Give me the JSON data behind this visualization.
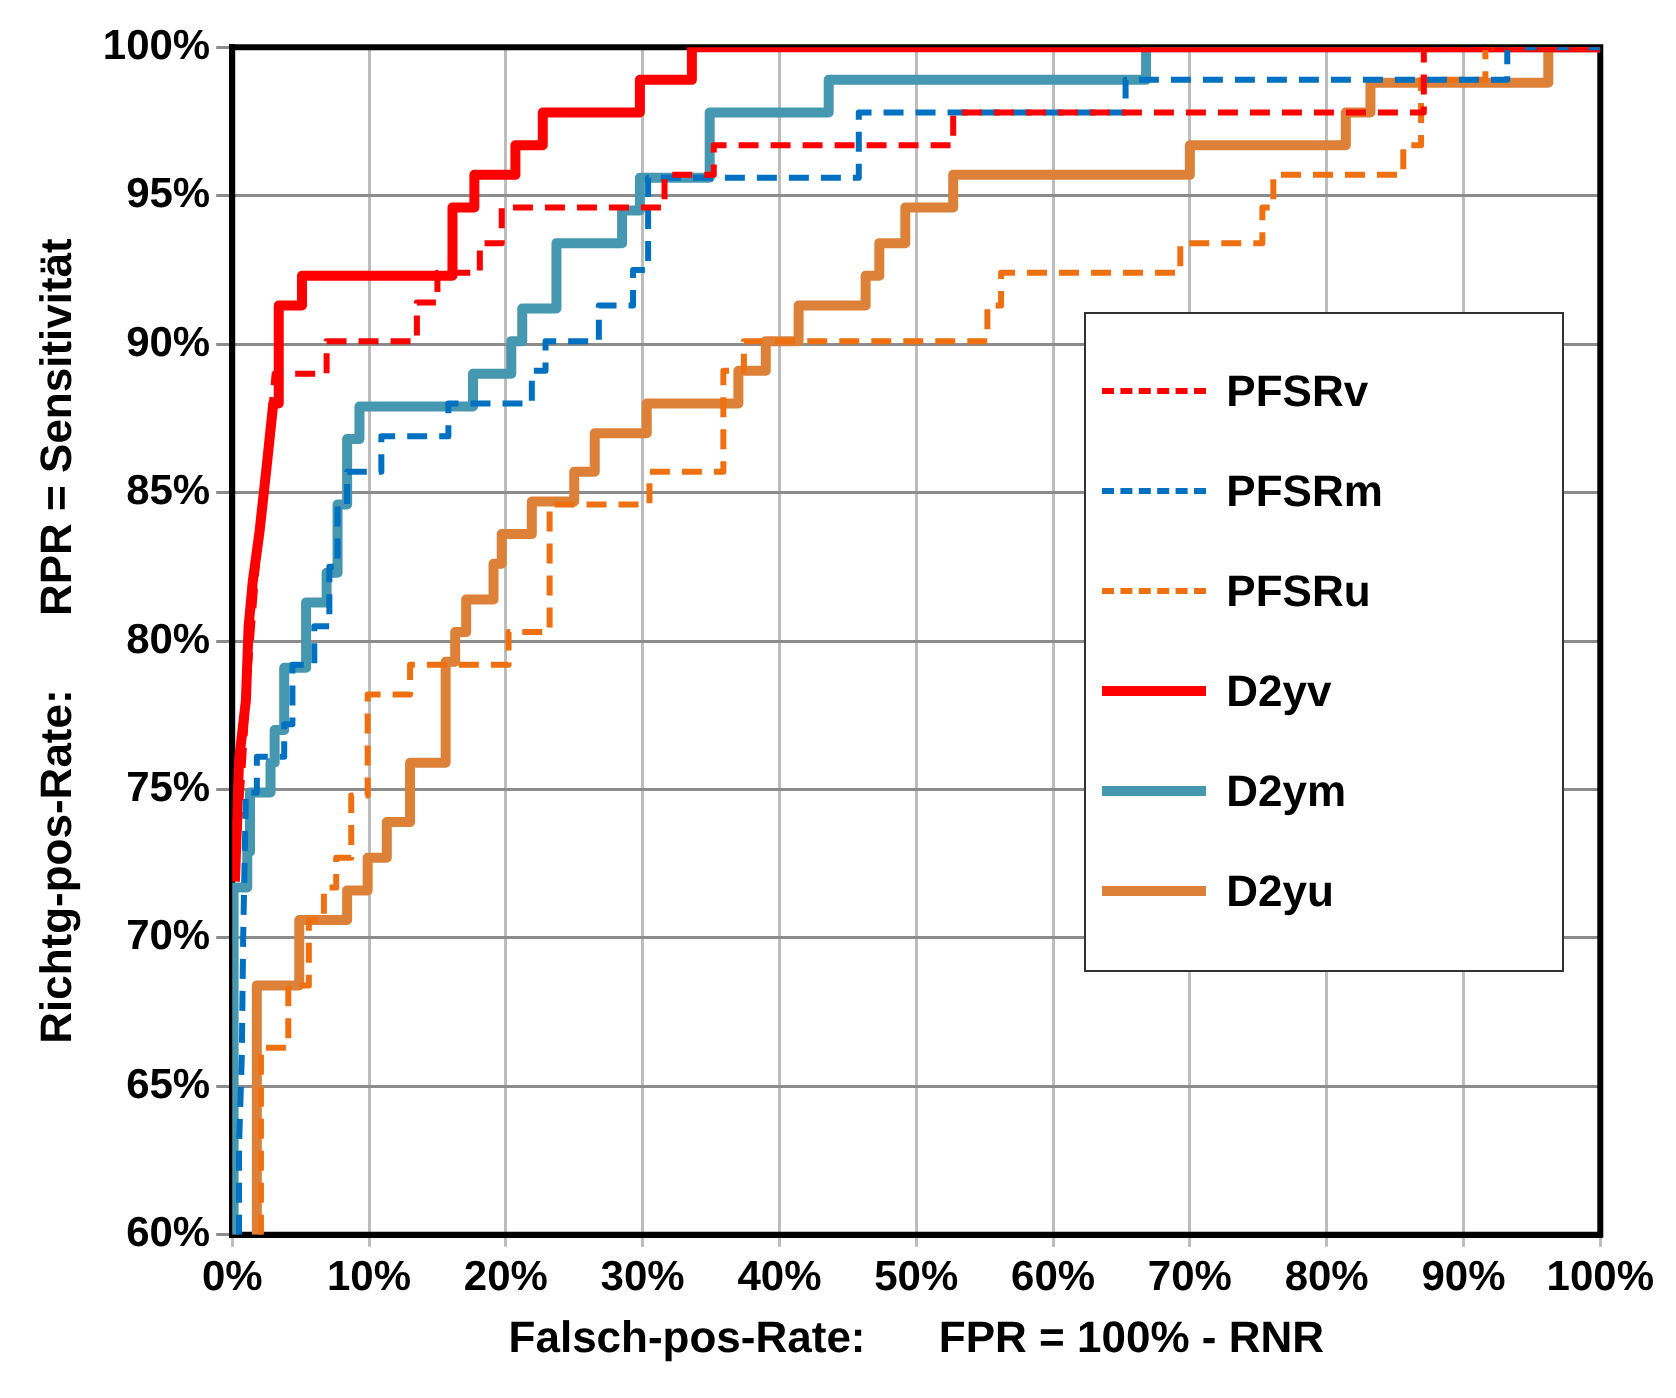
{
  "chart_data": {
    "type": "line",
    "xlabel": "Falsch-pos-Rate:      FPR = 100% - RNR",
    "ylabel": "Richtg-pos-Rate:      RPR = Sensitivität",
    "xlim": [
      0,
      100
    ],
    "ylim": [
      60,
      100
    ],
    "xticks": [
      {
        "value": 0,
        "label": "0%"
      },
      {
        "value": 10,
        "label": "10%"
      },
      {
        "value": 20,
        "label": "20%"
      },
      {
        "value": 30,
        "label": "30%"
      },
      {
        "value": 40,
        "label": "40%"
      },
      {
        "value": 50,
        "label": "50%"
      },
      {
        "value": 60,
        "label": "60%"
      },
      {
        "value": 70,
        "label": "70%"
      },
      {
        "value": 80,
        "label": "80%"
      },
      {
        "value": 90,
        "label": "90%"
      },
      {
        "value": 100,
        "label": "100%"
      }
    ],
    "yticks": [
      {
        "value": 60,
        "label": "60%"
      },
      {
        "value": 65,
        "label": "65%"
      },
      {
        "value": 70,
        "label": "70%"
      },
      {
        "value": 75,
        "label": "75%"
      },
      {
        "value": 80,
        "label": "80%"
      },
      {
        "value": 85,
        "label": "85%"
      },
      {
        "value": 90,
        "label": "90%"
      },
      {
        "value": 95,
        "label": "95%"
      },
      {
        "value": 100,
        "label": "100%"
      }
    ],
    "grid": true,
    "legend": "right",
    "marker": "none",
    "series": [
      {
        "name": "PFSRv",
        "color": "#ff0000",
        "line_style": "dashed",
        "x": [
          0.3,
          0.8,
          1.2,
          1.7,
          2.2,
          2.7,
          3.1,
          3.1,
          6.9,
          6.9,
          13.5,
          13.5,
          15,
          15,
          18.1,
          18.1,
          19.7,
          19.7,
          31.6,
          31.6,
          35.2,
          35.2,
          52.7,
          52.7,
          87.1,
          87.1,
          100
        ],
        "values": [
          72.5,
          76,
          79,
          82,
          85,
          87,
          89,
          89,
          89,
          90.1,
          90.1,
          91.4,
          91.4,
          92.4,
          92.4,
          93.4,
          93.4,
          94.6,
          94.6,
          95.7,
          95.7,
          96.7,
          96.7,
          97.8,
          97.8,
          100,
          100
        ]
      },
      {
        "name": "PFSRm",
        "color": "#0070c0",
        "line_style": "dashed",
        "x": [
          0.5,
          0.5,
          0.7,
          0.8,
          1,
          1.8,
          1.8,
          3.8,
          3.8,
          4.4,
          4.4,
          6,
          6,
          7.1,
          7.1,
          7.7,
          7.7,
          8.4,
          8.4,
          10.9,
          10.9,
          15.8,
          15.8,
          21.9,
          21.9,
          22.9,
          22.9,
          26.8,
          26.8,
          29.3,
          29.3,
          30.4,
          30.4,
          45.8,
          45.8,
          65.3,
          65.3,
          93.2,
          93.2,
          100
        ],
        "values": [
          60,
          63,
          66,
          70,
          74.9,
          74.9,
          76.1,
          76.1,
          77.2,
          77.2,
          79.2,
          79.2,
          80.5,
          80.5,
          82.5,
          82.5,
          84.6,
          84.6,
          85.7,
          85.7,
          86.9,
          86.9,
          88,
          88,
          89.1,
          89.1,
          90.1,
          90.1,
          91.3,
          91.3,
          92.5,
          92.5,
          95.6,
          95.6,
          97.8,
          97.8,
          98.9,
          98.9,
          100,
          100
        ]
      },
      {
        "name": "PFSRu",
        "color": "#ee7011",
        "line_style": "dashed",
        "x": [
          2.1,
          2.1,
          4.1,
          4.1,
          5.6,
          5.6,
          6.7,
          6.7,
          7.6,
          7.6,
          8.7,
          8.7,
          9.9,
          9.9,
          13,
          13,
          20.2,
          20.2,
          23.2,
          23.2,
          30.5,
          30.5,
          35.9,
          35.9,
          37.4,
          37.4,
          55.2,
          55.2,
          56.2,
          56.2,
          69.3,
          69.3,
          75.3,
          75.3,
          76.1,
          76.1,
          85.6,
          85.6,
          86.9,
          86.9,
          91.6,
          91.6,
          100
        ],
        "values": [
          60,
          66.3,
          66.3,
          68.4,
          68.4,
          70.6,
          70.6,
          71.7,
          71.7,
          72.7,
          72.7,
          74.8,
          74.8,
          78.2,
          78.2,
          79.2,
          79.2,
          80.3,
          80.3,
          84.6,
          84.6,
          85.7,
          85.7,
          89.1,
          89.1,
          90.1,
          90.1,
          91.3,
          91.3,
          92.4,
          92.4,
          93.4,
          93.4,
          94.6,
          94.6,
          95.7,
          95.7,
          96.7,
          96.7,
          98.9,
          98.9,
          100,
          100
        ]
      },
      {
        "name": "D2yv",
        "color": "#ff0000",
        "line_style": "solid",
        "x": [
          0.2,
          0.5,
          1,
          1.2,
          1.5,
          2,
          2.5,
          3,
          3.4,
          3.4,
          5.1,
          5.1,
          16.1,
          16.1,
          17.7,
          17.7,
          20.7,
          20.7,
          22.7,
          22.7,
          29.8,
          29.8,
          33.6,
          33.6,
          100
        ],
        "values": [
          71.9,
          76,
          78,
          80.5,
          82,
          83.7,
          85.8,
          88,
          88,
          91.3,
          91.3,
          92.3,
          92.3,
          94.6,
          94.6,
          95.7,
          95.7,
          96.7,
          96.7,
          97.8,
          97.8,
          98.9,
          98.9,
          100,
          100
        ]
      },
      {
        "name": "D2ym",
        "color": "#4697b0",
        "line_style": "solid",
        "x": [
          0.1,
          0.1,
          1.1,
          1.1,
          1.3,
          1.3,
          2.8,
          2.8,
          3.1,
          3.1,
          3.8,
          3.8,
          5.4,
          5.4,
          6.9,
          6.9,
          7.7,
          7.7,
          8.4,
          8.4,
          9.3,
          9.3,
          17.6,
          17.6,
          20.4,
          20.4,
          21.2,
          21.2,
          23.7,
          23.7,
          28.5,
          28.5,
          29.8,
          29.8,
          34.9,
          34.9,
          43.6,
          43.6,
          66.8,
          66.8,
          100
        ],
        "values": [
          60,
          71.7,
          71.7,
          72.9,
          72.9,
          74.9,
          74.9,
          75.9,
          75.9,
          77,
          77,
          79.1,
          79.1,
          81.3,
          81.3,
          82.3,
          82.3,
          84.6,
          84.6,
          86.8,
          86.8,
          87.9,
          87.9,
          89,
          89,
          90.1,
          90.1,
          91.2,
          91.2,
          93.4,
          93.4,
          94.5,
          94.5,
          95.6,
          95.6,
          97.8,
          97.8,
          98.9,
          98.9,
          100,
          100
        ]
      },
      {
        "name": "D2yu",
        "color": "#dd8138",
        "line_style": "solid",
        "x": [
          1.8,
          1.8,
          4.9,
          4.9,
          8.4,
          8.4,
          9.9,
          9.9,
          11.3,
          11.3,
          13,
          13,
          15.6,
          15.6,
          16.3,
          16.3,
          17.1,
          17.1,
          19.1,
          19.1,
          19.7,
          19.7,
          21.9,
          21.9,
          25,
          25,
          26.5,
          26.5,
          30.3,
          30.3,
          37,
          37,
          39,
          39,
          41.4,
          41.4,
          46.3,
          46.3,
          47.3,
          47.3,
          49.2,
          49.2,
          52.7,
          52.7,
          70,
          70,
          81.4,
          81.4,
          83.2,
          83.2,
          96.2,
          96.2,
          100
        ],
        "values": [
          60,
          68.4,
          68.4,
          70.6,
          70.6,
          71.6,
          71.6,
          72.7,
          72.7,
          73.9,
          73.9,
          75.9,
          75.9,
          79.3,
          79.3,
          80.3,
          80.3,
          81.4,
          81.4,
          82.6,
          82.6,
          83.6,
          83.6,
          84.7,
          84.7,
          85.7,
          85.7,
          87,
          87,
          88,
          88,
          89.1,
          89.1,
          90.1,
          90.1,
          91.3,
          91.3,
          92.3,
          92.3,
          93.4,
          93.4,
          94.6,
          94.6,
          95.7,
          95.7,
          96.7,
          96.7,
          97.8,
          97.8,
          98.8,
          98.8,
          100,
          100
        ]
      }
    ]
  }
}
